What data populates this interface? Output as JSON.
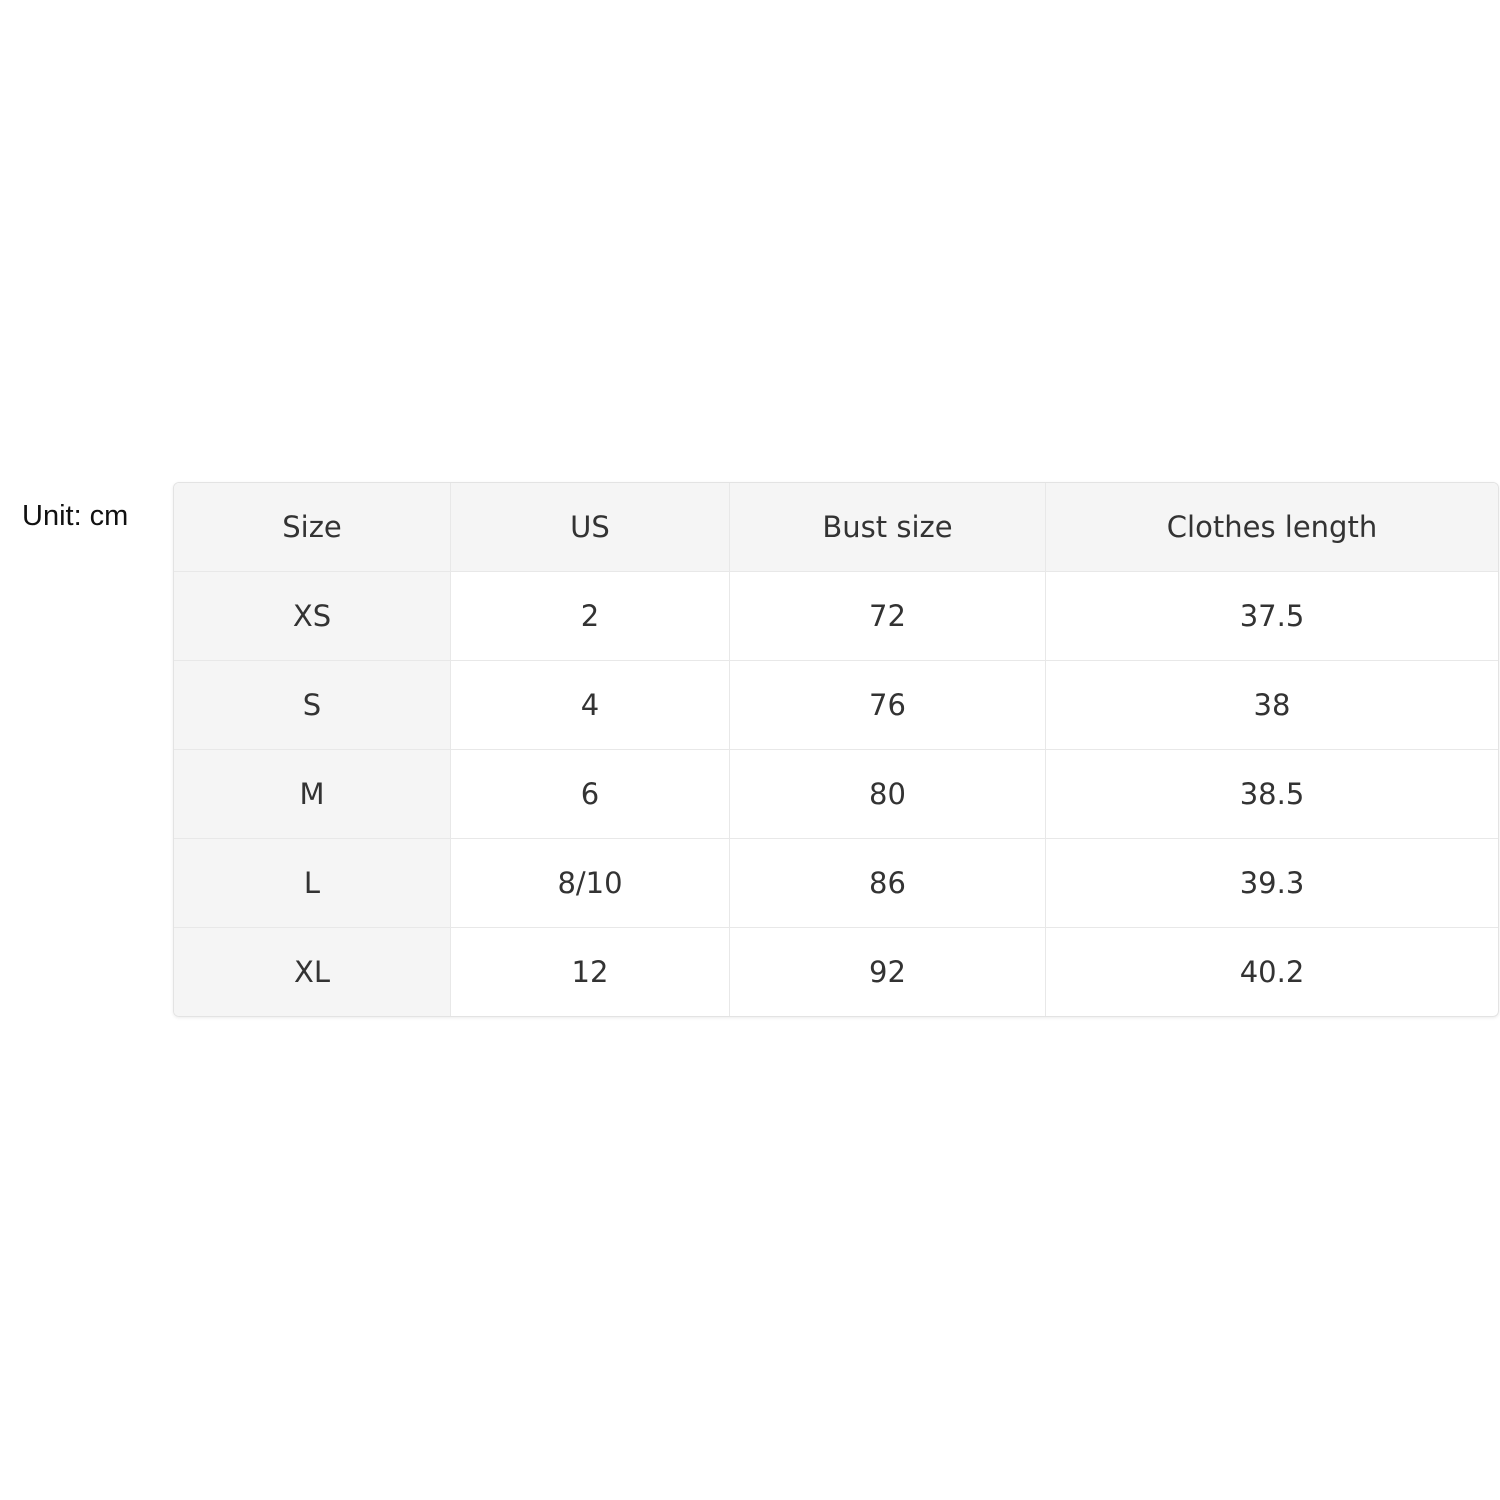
{
  "unit_label": "Unit: cm",
  "table": {
    "headers": [
      "Size",
      "US",
      "Bust size",
      "Clothes length"
    ],
    "rows": [
      [
        "XS",
        "2",
        "72",
        "37.5"
      ],
      [
        "S",
        "4",
        "76",
        "38"
      ],
      [
        "M",
        "6",
        "80",
        "38.5"
      ],
      [
        "L",
        "8/10",
        "86",
        "39.3"
      ],
      [
        "XL",
        "12",
        "92",
        "40.2"
      ]
    ]
  }
}
